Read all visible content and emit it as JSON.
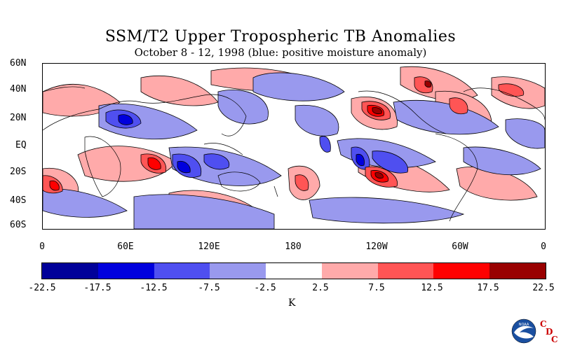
{
  "title": "SSM/T2 Upper Tropospheric TB Anomalies",
  "subtitle": "October 8 - 12, 1998 (blue: positive moisture anomaly)",
  "lat_labels": [
    "60N",
    "40N",
    "20N",
    "EQ",
    "20S",
    "40S",
    "60S"
  ],
  "lon_labels": [
    "0",
    "60E",
    "120E",
    "180",
    "120W",
    "60W",
    "0"
  ],
  "colorbar": {
    "colors": [
      "#000099",
      "#0000dd",
      "#4f4ff0",
      "#9999ee",
      "#ffffff",
      "#ffaaaa",
      "#ff5555",
      "#ff0000",
      "#990000"
    ],
    "ticks": [
      "-22.5",
      "-17.5",
      "-12.5",
      "-7.5",
      "-2.5",
      "2.5",
      "7.5",
      "12.5",
      "17.5",
      "22.5"
    ],
    "unit": "K"
  },
  "logo": {
    "icon": "noaa-logo-icon",
    "text": "NOAA",
    "letters": [
      "C",
      "D",
      "C"
    ]
  },
  "map": {
    "region": "global",
    "lat_range": [
      -60,
      60
    ],
    "lon_range": [
      0,
      360
    ]
  }
}
